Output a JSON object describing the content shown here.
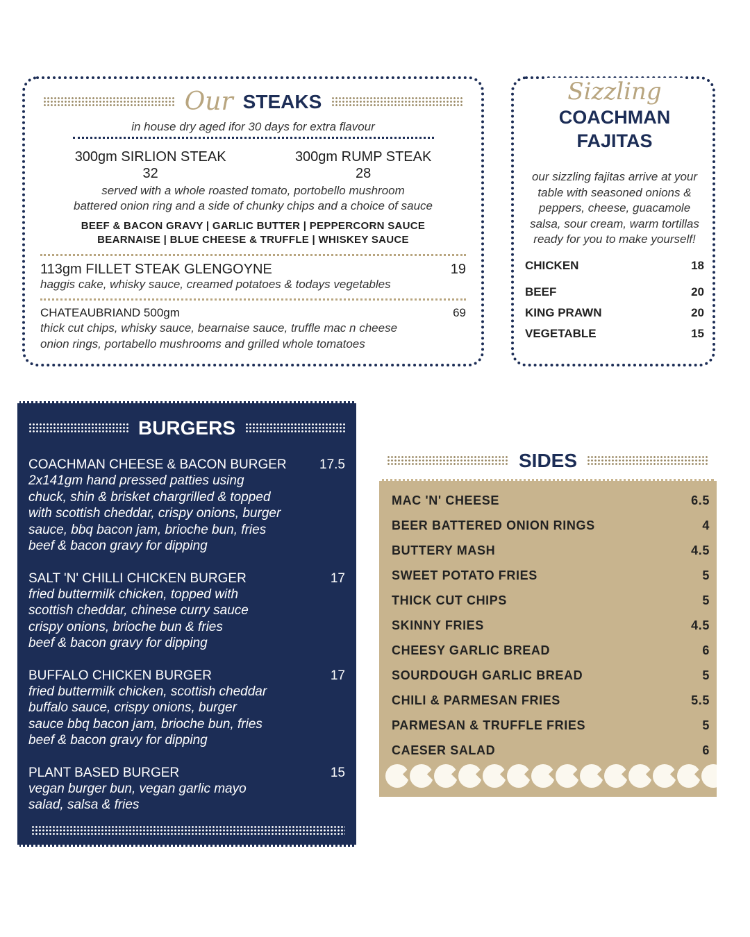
{
  "steaks": {
    "title_script": "Our",
    "title": "STEAKS",
    "subtitle": "in house dry aged ifor 30 days for extra flavour",
    "sirloin": {
      "name": "300gm  SIRLION STEAK",
      "price": "32"
    },
    "rump": {
      "name": "300gm RUMP STEAK",
      "price": "28"
    },
    "served": [
      "served with a whole roasted tomato, portobello mushroom",
      "battered onion ring and a side of chunky chips and a choice of sauce"
    ],
    "sauces": [
      "BEEF & BACON GRAVY  |  GARLIC BUTTER | PEPPERCORN SAUCE",
      "BEARNAISE | BLUE CHEESE & TRUFFLE | WHISKEY SAUCE"
    ],
    "fillet": {
      "name": "113gm  FILLET STEAK GLENGOYNE",
      "price": "19",
      "desc": "haggis cake, whisky sauce, creamed potatoes & todays vegetables"
    },
    "chateaubriand": {
      "name": "CHATEAUBRIAND 500gm",
      "price": "69",
      "desc": [
        "thick cut chips, whisky sauce, bearnaise sauce, truffle mac n cheese",
        "onion rings, portabello mushrooms and grilled whole tomatoes"
      ]
    }
  },
  "fajitas": {
    "title_script": "Sizzling",
    "title": [
      "COACHMAN",
      "FAJITAS"
    ],
    "desc": [
      "our sizzling fajitas arrive at your",
      "table with seasoned onions &",
      "peppers, cheese, guacamole",
      "salsa, sour cream, warm tortillas",
      "ready for you to make yourself!"
    ],
    "items": [
      {
        "name": "CHICKEN",
        "price": "18"
      },
      {
        "name": "BEEF",
        "price": "20"
      },
      {
        "name": "KING PRAWN",
        "price": "20"
      },
      {
        "name": "VEGETABLE",
        "price": "15"
      }
    ]
  },
  "burgers": {
    "title": "BURGERS",
    "items": [
      {
        "name": "COACHMAN CHEESE & BACON BURGER",
        "price": "17.5",
        "desc": [
          "2x141gm hand pressed patties using",
          "chuck, shin & brisket chargrilled & topped",
          "with scottish cheddar, crispy onions, burger",
          "sauce, bbq bacon jam, brioche bun, fries",
          "beef & bacon gravy for dipping"
        ]
      },
      {
        "name": "SALT 'N' CHILLI CHICKEN BURGER",
        "price": "17",
        "desc": [
          "fried buttermilk chicken, topped with",
          "scottish cheddar, chinese curry sauce",
          "crispy onions, brioche bun & fries",
          "beef & bacon gravy for dipping"
        ]
      },
      {
        "name": "BUFFALO CHICKEN BURGER",
        "price": "17",
        "desc": [
          "fried buttermilk chicken, scottish cheddar",
          "buffalo sauce, crispy onions, burger",
          "sauce bbq bacon jam, brioche bun, fries",
          "beef & bacon gravy for dipping"
        ]
      },
      {
        "name": "PLANT BASED BURGER",
        "price": "15",
        "desc": [
          "vegan burger bun, vegan garlic mayo",
          "salad, salsa & fries"
        ]
      }
    ]
  },
  "sides": {
    "title": "SIDES",
    "items": [
      {
        "name": "MAC 'N' CHEESE",
        "price": "6.5"
      },
      {
        "name": "BEER BATTERED ONION RINGS",
        "price": "4"
      },
      {
        "name": "BUTTERY MASH",
        "price": "4.5"
      },
      {
        "name": "SWEET POTATO FRIES",
        "price": "5"
      },
      {
        "name": "THICK CUT CHIPS",
        "price": "5"
      },
      {
        "name": "SKINNY FRIES",
        "price": "4.5"
      },
      {
        "name": "CHEESY GARLIC BREAD",
        "price": "6"
      },
      {
        "name": "SOURDOUGH GARLIC BREAD",
        "price": "5"
      },
      {
        "name": "CHILI & PARMESAN FRIES",
        "price": "5.5"
      },
      {
        "name": "PARMESAN & TRUFFLE FRIES",
        "price": "5"
      },
      {
        "name": "CAESER SALAD",
        "price": "6"
      }
    ]
  },
  "colors": {
    "navy": "#1c2d56",
    "gold": "#b8a57f",
    "tan": "#c8b48e"
  }
}
